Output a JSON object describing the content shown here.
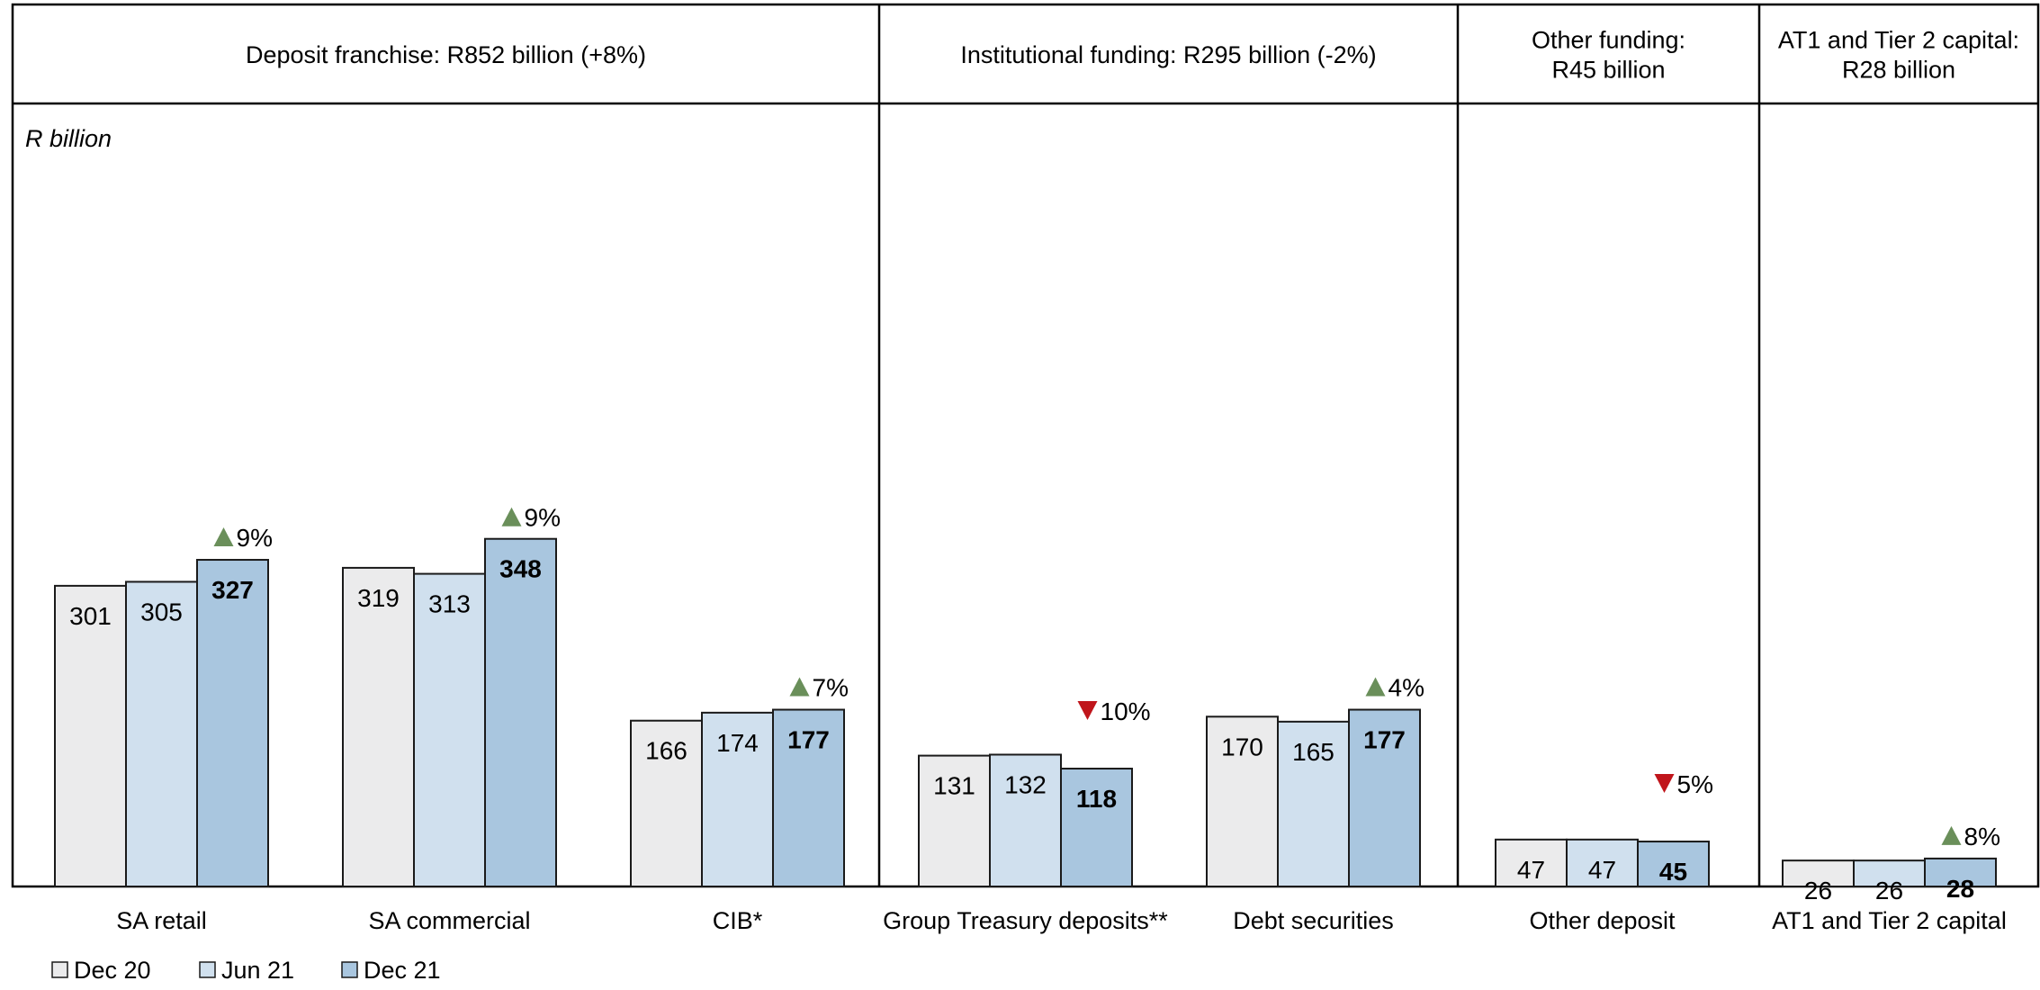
{
  "chart_data": {
    "type": "bar",
    "unit_label": "R billion",
    "series": [
      {
        "name": "Dec 20",
        "color": "#ebebec"
      },
      {
        "name": "Jun 21",
        "color": "#d0e0ee"
      },
      {
        "name": "Dec 21",
        "color": "#a9c6df"
      }
    ],
    "sections": [
      {
        "title_lines": [
          "Deposit franchise: R852 billion (+8%)"
        ],
        "category_indices": [
          0,
          1,
          2
        ]
      },
      {
        "title_lines": [
          "Institutional funding: R295 billion (-2%)"
        ],
        "category_indices": [
          3,
          4
        ]
      },
      {
        "title_lines": [
          "Other funding:",
          "R45 billion"
        ],
        "category_indices": [
          5
        ]
      },
      {
        "title_lines": [
          "AT1 and Tier 2 capital:",
          "R28 billion"
        ],
        "category_indices": [
          6
        ]
      }
    ],
    "categories": [
      {
        "label": "SA retail",
        "values": [
          301,
          305,
          327
        ],
        "change": {
          "direction": "up",
          "text": "9%"
        }
      },
      {
        "label": "SA commercial",
        "values": [
          319,
          313,
          348
        ],
        "change": {
          "direction": "up",
          "text": "9%"
        }
      },
      {
        "label": "CIB*",
        "values": [
          166,
          174,
          177
        ],
        "change": {
          "direction": "up",
          "text": "7%"
        }
      },
      {
        "label": "Group Treasury deposits**",
        "values": [
          131,
          132,
          118
        ],
        "change": {
          "direction": "down",
          "text": "10%"
        }
      },
      {
        "label": "Debt securities",
        "values": [
          170,
          165,
          177
        ],
        "change": {
          "direction": "up",
          "text": "4%"
        }
      },
      {
        "label": "Other deposit",
        "values": [
          47,
          47,
          45
        ],
        "change": {
          "direction": "down",
          "text": "5%"
        }
      },
      {
        "label": "AT1 and Tier 2 capital",
        "values": [
          26,
          26,
          28
        ],
        "change": {
          "direction": "up",
          "text": "8%"
        }
      }
    ],
    "legend": [
      "Dec 20",
      "Jun 21",
      "Dec 21"
    ],
    "legend_position": "bottom-left",
    "up_color": "#6a8f5a",
    "down_color": "#c0151b",
    "ylim": [
      0,
      400
    ],
    "grid": false
  }
}
